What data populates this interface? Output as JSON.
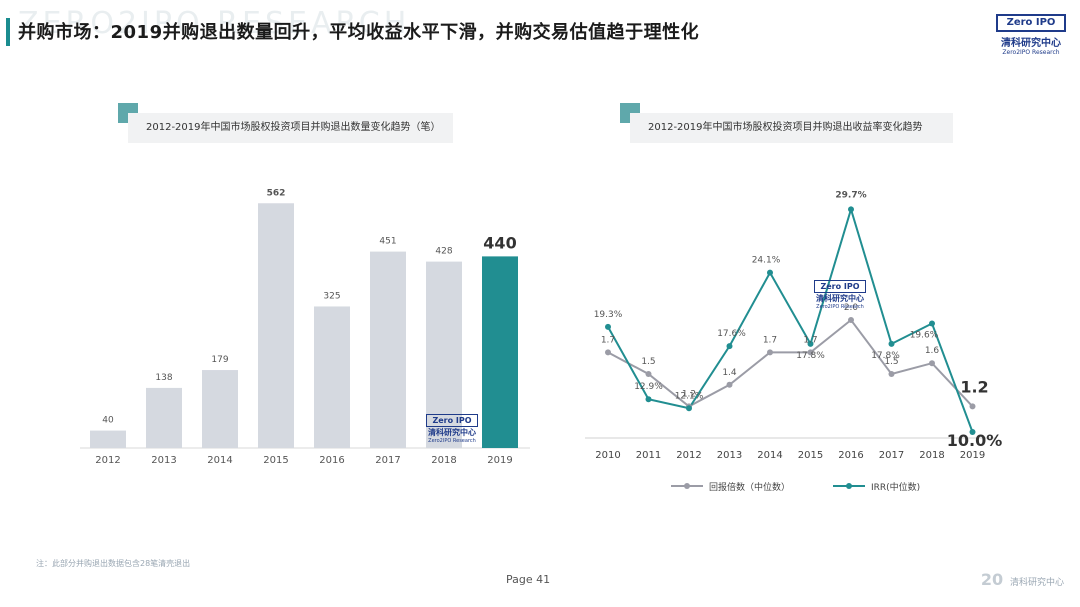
{
  "header": {
    "title": "并购市场：2019并购退出数量回升，平均收益水平下滑，并购交易估值趋于理性化",
    "watermark": "ZERO2IPO RESEARCH",
    "logo_box": "Zero IPO",
    "logo_cn": "清科研究中心",
    "logo_en": "Zero2IPO Research"
  },
  "left_chart_header": "2012-2019年中国市场股权投资项目并购退出数量变化趋势（笔）",
  "right_chart_header": "2012-2019年中国市场股权投资项目并购退出收益率变化趋势",
  "chart_data": [
    {
      "type": "bar",
      "categories": [
        "2012",
        "2013",
        "2014",
        "2015",
        "2016",
        "2017",
        "2018",
        "2019"
      ],
      "values": [
        40,
        138,
        179,
        562,
        325,
        451,
        428,
        440
      ],
      "highlight_index": 7,
      "ylim": [
        0,
        620
      ],
      "colors": {
        "default": "#d5d9e0",
        "highlight": "#218e91"
      }
    },
    {
      "type": "line",
      "x": [
        "2010",
        "2011",
        "2012",
        "2013",
        "2014",
        "2015",
        "2016",
        "2017",
        "2018",
        "2019"
      ],
      "series": [
        {
          "name": "回报倍数（中位数）",
          "values": [
            1.7,
            1.5,
            1.2,
            1.4,
            1.7,
            1.7,
            2.0,
            1.5,
            1.6,
            1.2
          ],
          "labels": [
            "1.7",
            "1.5",
            "1.2",
            "1.4",
            "1.7",
            "1.7",
            "2.0",
            "1.5",
            "1.6",
            "1.2"
          ],
          "color": "#9b9ca6"
        },
        {
          "name": "IRR(中位数)",
          "values": [
            19.3,
            12.9,
            12.1,
            17.6,
            24.1,
            17.8,
            29.7,
            17.8,
            19.6,
            10.0
          ],
          "labels": [
            "19.3%",
            "12.9%",
            "12.1%",
            "17.6%",
            "24.1%",
            "17.8%",
            "29.7%",
            "17.8%",
            "19.6%",
            "10.0%"
          ],
          "color": "#218e91"
        }
      ],
      "legend": "bottom"
    }
  ],
  "footer": {
    "note": "注：此部分并购退出数据包含28笔清壳退出",
    "page": "Page 41",
    "corner_num": "20",
    "corner_text": "清科研究中心"
  }
}
